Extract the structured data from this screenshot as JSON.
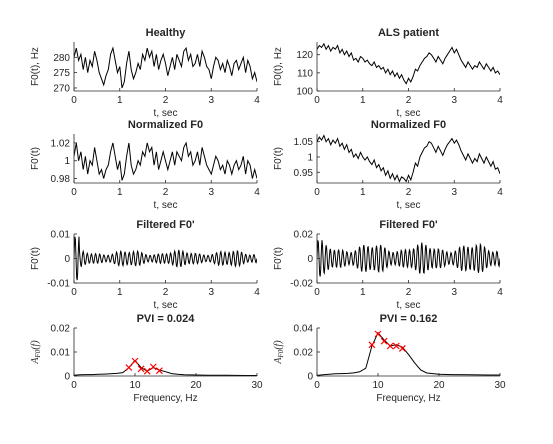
{
  "chart_data": [
    {
      "id": "healthy_f0",
      "type": "line",
      "title": "Healthy",
      "xlabel": "t, sec",
      "ylabel": "F0(t), Hz",
      "xlim": [
        0,
        4
      ],
      "ylim": [
        269,
        285
      ],
      "xticks": [
        0,
        1,
        2,
        3,
        4
      ],
      "yticks": [
        270,
        275,
        280
      ],
      "x": [
        0,
        0.05,
        0.1,
        0.15,
        0.2,
        0.25,
        0.3,
        0.35,
        0.4,
        0.45,
        0.5,
        0.55,
        0.6,
        0.65,
        0.7,
        0.75,
        0.8,
        0.85,
        0.9,
        0.95,
        1.0,
        1.05,
        1.1,
        1.15,
        1.2,
        1.25,
        1.3,
        1.35,
        1.4,
        1.45,
        1.5,
        1.55,
        1.6,
        1.65,
        1.7,
        1.75,
        1.8,
        1.85,
        1.9,
        1.95,
        2.0,
        2.05,
        2.1,
        2.15,
        2.2,
        2.25,
        2.3,
        2.35,
        2.4,
        2.45,
        2.5,
        2.55,
        2.6,
        2.65,
        2.7,
        2.75,
        2.8,
        2.85,
        2.9,
        2.95,
        3.0,
        3.05,
        3.1,
        3.15,
        3.2,
        3.25,
        3.3,
        3.35,
        3.4,
        3.45,
        3.5,
        3.55,
        3.6,
        3.65,
        3.7,
        3.75,
        3.8,
        3.85,
        3.9,
        3.95,
        4.0
      ],
      "y": [
        280,
        283,
        279,
        281,
        276,
        280,
        275,
        279,
        277,
        282,
        279,
        275,
        273,
        271,
        274,
        276,
        281,
        283,
        279,
        275,
        277,
        270,
        272,
        278,
        282,
        276,
        273,
        275,
        278,
        276,
        281,
        279,
        283,
        280,
        282,
        277,
        281,
        276,
        279,
        281,
        278,
        274,
        277,
        280,
        276,
        281,
        279,
        277,
        282,
        283,
        279,
        281,
        277,
        278,
        281,
        277,
        282,
        280,
        277,
        276,
        273,
        277,
        280,
        279,
        276,
        278,
        275,
        279,
        277,
        274,
        278,
        279,
        276,
        278,
        280,
        275,
        279,
        277,
        273,
        275,
        272
      ],
      "series_color": "#000000"
    },
    {
      "id": "als_f0",
      "type": "line",
      "title": "ALS patient",
      "xlabel": "t, sec",
      "ylabel": "F0(t), Hz",
      "xlim": [
        0,
        4
      ],
      "ylim": [
        100,
        127
      ],
      "xticks": [
        0,
        1,
        2,
        3,
        4
      ],
      "yticks": [
        100,
        110,
        120
      ],
      "x": [
        0,
        0.05,
        0.1,
        0.15,
        0.2,
        0.25,
        0.3,
        0.35,
        0.4,
        0.45,
        0.5,
        0.55,
        0.6,
        0.65,
        0.7,
        0.75,
        0.8,
        0.85,
        0.9,
        0.95,
        1.0,
        1.05,
        1.1,
        1.15,
        1.2,
        1.25,
        1.3,
        1.35,
        1.4,
        1.45,
        1.5,
        1.55,
        1.6,
        1.65,
        1.7,
        1.75,
        1.8,
        1.85,
        1.9,
        1.95,
        2.0,
        2.05,
        2.1,
        2.15,
        2.2,
        2.25,
        2.3,
        2.35,
        2.4,
        2.45,
        2.5,
        2.55,
        2.6,
        2.65,
        2.7,
        2.75,
        2.8,
        2.85,
        2.9,
        2.95,
        3.0,
        3.05,
        3.1,
        3.15,
        3.2,
        3.25,
        3.3,
        3.35,
        3.4,
        3.45,
        3.5,
        3.55,
        3.6,
        3.65,
        3.7,
        3.75,
        3.8,
        3.85,
        3.9,
        3.95,
        4.0
      ],
      "y": [
        123,
        125,
        124,
        126,
        123,
        125,
        122,
        124,
        123,
        125,
        121,
        123,
        120,
        122,
        119,
        121,
        117,
        118,
        116,
        119,
        118,
        116,
        117,
        115,
        114,
        116,
        113,
        114,
        112,
        113,
        110,
        112,
        109,
        111,
        108,
        110,
        107,
        109,
        106,
        104,
        107,
        105,
        108,
        112,
        111,
        114,
        116,
        118,
        119,
        121,
        120,
        118,
        116,
        119,
        117,
        115,
        118,
        120,
        122,
        124,
        121,
        123,
        120,
        117,
        115,
        113,
        116,
        114,
        112,
        114,
        113,
        116,
        114,
        112,
        115,
        113,
        111,
        113,
        110,
        111,
        109
      ],
      "series_color": "#000000"
    },
    {
      "id": "healthy_norm",
      "type": "line",
      "title": "Normalized F0",
      "xlabel": "t, sec",
      "ylabel": "F0'(t)",
      "xlim": [
        0,
        4
      ],
      "ylim": [
        0.975,
        1.03
      ],
      "xticks": [
        0,
        1,
        2,
        3,
        4
      ],
      "yticks": [
        0.98,
        1,
        1.02
      ],
      "x": [
        0,
        0.05,
        0.1,
        0.15,
        0.2,
        0.25,
        0.3,
        0.35,
        0.4,
        0.45,
        0.5,
        0.55,
        0.6,
        0.65,
        0.7,
        0.75,
        0.8,
        0.85,
        0.9,
        0.95,
        1.0,
        1.05,
        1.1,
        1.15,
        1.2,
        1.25,
        1.3,
        1.35,
        1.4,
        1.45,
        1.5,
        1.55,
        1.6,
        1.65,
        1.7,
        1.75,
        1.8,
        1.85,
        1.9,
        1.95,
        2.0,
        2.05,
        2.1,
        2.15,
        2.2,
        2.25,
        2.3,
        2.35,
        2.4,
        2.45,
        2.5,
        2.55,
        2.6,
        2.65,
        2.7,
        2.75,
        2.8,
        2.85,
        2.9,
        2.95,
        3.0,
        3.05,
        3.1,
        3.15,
        3.2,
        3.25,
        3.3,
        3.35,
        3.4,
        3.45,
        3.5,
        3.55,
        3.6,
        3.65,
        3.7,
        3.75,
        3.8,
        3.85,
        3.9,
        3.95,
        4.0
      ],
      "y": [
        1.005,
        1.02,
        1.0,
        1.01,
        0.99,
        1.005,
        0.985,
        1.0,
        0.995,
        1.015,
        1.0,
        0.985,
        0.99,
        0.98,
        0.99,
        0.995,
        1.01,
        1.02,
        1.005,
        0.99,
        1.0,
        0.978,
        0.985,
        1.005,
        1.02,
        0.995,
        0.985,
        0.99,
        1.0,
        0.995,
        1.01,
        1.005,
        1.02,
        1.01,
        1.015,
        0.995,
        1.01,
        0.99,
        1.0,
        1.01,
        1.0,
        0.99,
        1.0,
        1.01,
        0.995,
        1.01,
        1.005,
        1.0,
        1.015,
        1.02,
        1.005,
        1.01,
        0.995,
        1.0,
        1.01,
        0.995,
        1.015,
        1.005,
        0.995,
        0.99,
        0.985,
        0.995,
        1.005,
        1.0,
        0.99,
        0.995,
        0.985,
        1.0,
        0.995,
        0.985,
        0.995,
        1.0,
        0.99,
        0.995,
        1.005,
        0.985,
        1.0,
        0.995,
        0.98,
        0.99,
        0.98
      ],
      "series_color": "#000000"
    },
    {
      "id": "als_norm",
      "type": "line",
      "title": "Normalized F0",
      "xlabel": "t, sec",
      "ylabel": "F0'(t)",
      "xlim": [
        0,
        4
      ],
      "ylim": [
        0.915,
        1.075
      ],
      "xticks": [
        0,
        1,
        2,
        3,
        4
      ],
      "yticks": [
        0.9,
        0.95,
        1,
        1.05
      ],
      "x": [
        0,
        0.05,
        0.1,
        0.15,
        0.2,
        0.25,
        0.3,
        0.35,
        0.4,
        0.45,
        0.5,
        0.55,
        0.6,
        0.65,
        0.7,
        0.75,
        0.8,
        0.85,
        0.9,
        0.95,
        1.0,
        1.05,
        1.1,
        1.15,
        1.2,
        1.25,
        1.3,
        1.35,
        1.4,
        1.45,
        1.5,
        1.55,
        1.6,
        1.65,
        1.7,
        1.75,
        1.8,
        1.85,
        1.9,
        1.95,
        2.0,
        2.05,
        2.1,
        2.15,
        2.2,
        2.25,
        2.3,
        2.35,
        2.4,
        2.45,
        2.5,
        2.55,
        2.6,
        2.65,
        2.7,
        2.75,
        2.8,
        2.85,
        2.9,
        2.95,
        3.0,
        3.05,
        3.1,
        3.15,
        3.2,
        3.25,
        3.3,
        3.35,
        3.4,
        3.45,
        3.5,
        3.55,
        3.6,
        3.65,
        3.7,
        3.75,
        3.8,
        3.85,
        3.9,
        3.95,
        4.0
      ],
      "y": [
        1.05,
        1.065,
        1.055,
        1.07,
        1.05,
        1.06,
        1.04,
        1.055,
        1.045,
        1.06,
        1.035,
        1.045,
        1.025,
        1.04,
        1.015,
        1.025,
        1.0,
        1.01,
        0.995,
        1.015,
        1.0,
        0.99,
        1.0,
        0.985,
        0.975,
        0.99,
        0.965,
        0.975,
        0.955,
        0.965,
        0.94,
        0.955,
        0.93,
        0.945,
        0.925,
        0.94,
        0.92,
        0.935,
        0.93,
        0.92,
        0.94,
        0.925,
        0.95,
        0.98,
        0.97,
        1.0,
        1.015,
        1.03,
        1.035,
        1.05,
        1.045,
        1.03,
        1.015,
        1.035,
        1.02,
        1.005,
        1.025,
        1.04,
        1.05,
        1.06,
        1.045,
        1.055,
        1.04,
        1.02,
        1.005,
        0.99,
        1.01,
        0.995,
        0.98,
        0.995,
        0.985,
        1.01,
        0.995,
        0.98,
        1.0,
        0.985,
        0.97,
        0.985,
        0.96,
        0.965,
        0.945
      ],
      "series_color": "#000000"
    },
    {
      "id": "healthy_filt",
      "type": "line",
      "title": "Filtered F0'",
      "xlabel": "t, sec",
      "ylabel": "F0'(t)",
      "xlim": [
        0,
        4
      ],
      "ylim": [
        -0.01,
        0.01
      ],
      "xticks": [
        0,
        1,
        2,
        3,
        4
      ],
      "yticks": [
        -0.01,
        0,
        0.01
      ],
      "signal": {
        "n": 400,
        "amplitude": 0.0035,
        "start_amplitude": 0.009,
        "cycles_per_sec": 11
      },
      "series_color": "#000000"
    },
    {
      "id": "als_filt",
      "type": "line",
      "title": "Filtered F0'",
      "xlabel": "t, sec",
      "ylabel": "F0'(t)",
      "xlim": [
        0,
        4
      ],
      "ylim": [
        -0.02,
        0.02
      ],
      "xticks": [
        0,
        1,
        2,
        3,
        4
      ],
      "yticks": [
        -0.02,
        0,
        0.02
      ],
      "signal": {
        "n": 400,
        "amplitude": 0.013,
        "start_amplitude": 0.015,
        "cycles_per_sec": 11
      },
      "series_color": "#000000"
    },
    {
      "id": "healthy_spec",
      "type": "line",
      "title": "PVI = 0.024",
      "xlabel": "Frequency, Hz",
      "ylabel": "A_F0(f)",
      "xlim": [
        0,
        30
      ],
      "ylim": [
        0,
        0.02
      ],
      "xticks": [
        0,
        10,
        20,
        30
      ],
      "yticks": [
        0,
        0.01,
        0.02
      ],
      "x": [
        0,
        1,
        2,
        3,
        4,
        5,
        6,
        7,
        8,
        9,
        10,
        11,
        12,
        13,
        14,
        15,
        16,
        17,
        18,
        20,
        22,
        25,
        28,
        30
      ],
      "y": [
        0.0003,
        0.0005,
        0.0006,
        0.0006,
        0.0007,
        0.0008,
        0.0009,
        0.0011,
        0.0014,
        0.0035,
        0.0065,
        0.0035,
        0.002,
        0.0035,
        0.0025,
        0.0018,
        0.001,
        0.0007,
        0.0005,
        0.0004,
        0.0003,
        0.0003,
        0.0002,
        0.0002
      ],
      "markers": {
        "x": [
          9,
          10,
          11,
          12,
          13,
          14
        ],
        "y": [
          0.0035,
          0.0062,
          0.003,
          0.002,
          0.0038,
          0.0022
        ]
      },
      "series_color": "#000000",
      "marker_color": "#ff0000"
    },
    {
      "id": "als_spec",
      "type": "line",
      "title": "PVI = 0.162",
      "xlabel": "Frequency, Hz",
      "ylabel": "A_F0(f)",
      "xlim": [
        0,
        30
      ],
      "ylim": [
        0,
        0.04
      ],
      "xticks": [
        0,
        10,
        20,
        30
      ],
      "yticks": [
        0,
        0.02,
        0.04
      ],
      "x": [
        0,
        1,
        2,
        3,
        4,
        5,
        6,
        7,
        8,
        9,
        10,
        11,
        12,
        13,
        14,
        15,
        16,
        17,
        18,
        20,
        22,
        25,
        28,
        30
      ],
      "y": [
        0.0005,
        0.001,
        0.0015,
        0.0018,
        0.002,
        0.0022,
        0.0026,
        0.0035,
        0.0065,
        0.025,
        0.036,
        0.03,
        0.025,
        0.026,
        0.024,
        0.018,
        0.011,
        0.005,
        0.0025,
        0.0015,
        0.0012,
        0.001,
        0.0008,
        0.0008
      ],
      "markers": {
        "x": [
          9,
          10,
          11,
          12,
          13,
          14
        ],
        "y": [
          0.026,
          0.035,
          0.029,
          0.025,
          0.025,
          0.023
        ]
      },
      "series_color": "#000000",
      "marker_color": "#ff0000"
    }
  ]
}
